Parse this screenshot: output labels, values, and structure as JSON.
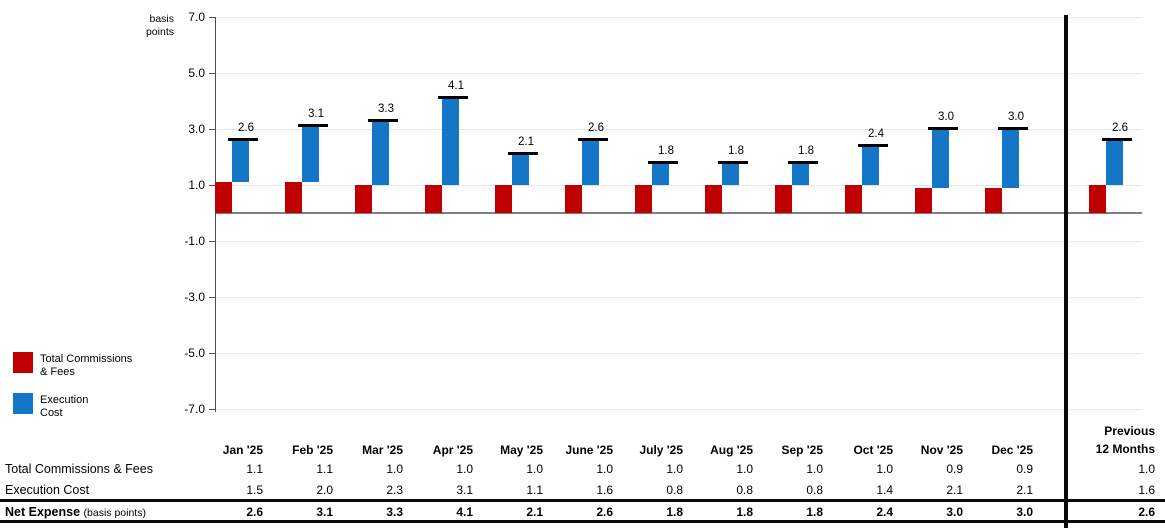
{
  "axis": {
    "unit_line1": "basis",
    "unit_line2": "points",
    "y_ticks": [
      "7.0",
      "5.0",
      "3.0",
      "1.0",
      "-1.0",
      "-3.0",
      "-5.0",
      "-7.0"
    ]
  },
  "legend": {
    "items": [
      {
        "line1": "Total Commissions",
        "line2": "& Fees",
        "color": "#c00000"
      },
      {
        "line1": "Execution",
        "line2": "Cost",
        "color": "#1476c6"
      }
    ]
  },
  "table": {
    "columns": [
      "Jan '25",
      "Feb '25",
      "Mar '25",
      "Apr '25",
      "May '25",
      "June '25",
      "July '25",
      "Aug '25",
      "Sep '25",
      "Oct '25",
      "Nov '25",
      "Dec '25"
    ],
    "previous_header": [
      "Previous",
      "12 Months"
    ],
    "rows": [
      {
        "label": "Total Commissions & Fees",
        "bold": false,
        "values": [
          "1.1",
          "1.1",
          "1.0",
          "1.0",
          "1.0",
          "1.0",
          "1.0",
          "1.0",
          "1.0",
          "1.0",
          "0.9",
          "0.9"
        ],
        "previous": "1.0"
      },
      {
        "label": "Execution Cost",
        "bold": false,
        "values": [
          "1.5",
          "2.0",
          "2.3",
          "3.1",
          "1.1",
          "1.6",
          "0.8",
          "0.8",
          "0.8",
          "1.4",
          "2.1",
          "2.1"
        ],
        "previous": "1.6"
      },
      {
        "label": "Net Expense",
        "sublabel": "(basis points)",
        "bold": true,
        "values": [
          "2.6",
          "3.1",
          "3.3",
          "4.1",
          "2.1",
          "2.6",
          "1.8",
          "1.8",
          "1.8",
          "2.4",
          "3.0",
          "3.0"
        ],
        "previous": "2.6"
      }
    ]
  },
  "chart_data": {
    "type": "bar",
    "subtype": "stacked-floating",
    "unit": "basis points",
    "categories": [
      "Jan '25",
      "Feb '25",
      "Mar '25",
      "Apr '25",
      "May '25",
      "June '25",
      "July '25",
      "Aug '25",
      "Sep '25",
      "Oct '25",
      "Nov '25",
      "Dec '25"
    ],
    "previous_category": "Previous 12 Months",
    "series": [
      {
        "name": "Total Commissions & Fees",
        "color": "#c00000",
        "values": [
          1.1,
          1.1,
          1.0,
          1.0,
          1.0,
          1.0,
          1.0,
          1.0,
          1.0,
          1.0,
          0.9,
          0.9
        ],
        "previous": 1.0
      },
      {
        "name": "Execution Cost",
        "color": "#1476c6",
        "values": [
          1.5,
          2.0,
          2.3,
          3.1,
          1.1,
          1.6,
          0.8,
          0.8,
          0.8,
          1.4,
          2.1,
          2.1
        ],
        "previous": 1.6
      }
    ],
    "net_labels": {
      "name": "Net Expense",
      "values": [
        2.6,
        3.1,
        3.3,
        4.1,
        2.1,
        2.6,
        1.8,
        1.8,
        1.8,
        2.4,
        3.0,
        3.0
      ],
      "previous": 2.6
    },
    "ylim": [
      -7.0,
      7.0
    ],
    "y_tick_values": [
      7.0,
      5.0,
      3.0,
      1.0,
      -1.0,
      -3.0,
      -5.0,
      -7.0
    ],
    "grid": true,
    "legend_position": "bottom-left"
  }
}
